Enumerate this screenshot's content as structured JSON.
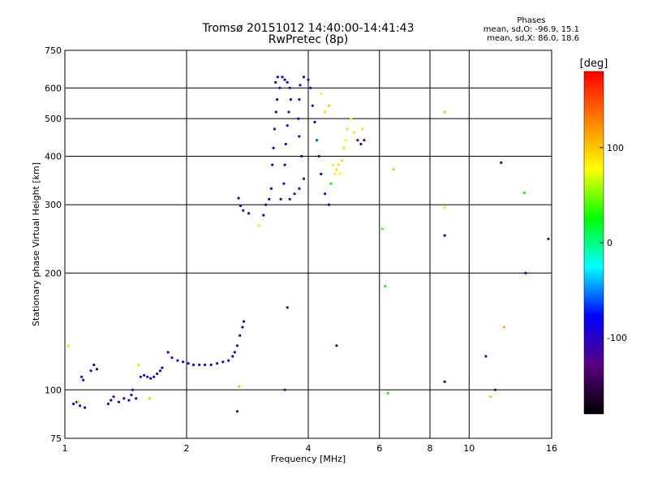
{
  "title_line1": "Tromsø 20151012 14:40:00-14:41:43",
  "title_line2": "RwPretec (8p)",
  "phases": {
    "title": "Phases",
    "line_o": "mean, sd,O: -96.9, 15.1",
    "line_x": "mean, sd,X:  86.0, 18.6"
  },
  "colorbar": {
    "unit": "[deg]",
    "ticks": [
      {
        "value": 100,
        "label": "100"
      },
      {
        "value": 0,
        "label": "0"
      },
      {
        "value": -100,
        "label": "-100"
      }
    ],
    "range": [
      -180,
      180
    ],
    "colors": [
      "#000000",
      "#5a007f",
      "#0000ff",
      "#00ffff",
      "#00ff00",
      "#ffff00",
      "#ff8000",
      "#ff0000"
    ]
  },
  "chart_data": {
    "type": "scatter",
    "xlabel": "Frequency [MHz]",
    "ylabel": "Stationary phase Virtual Height [km]",
    "xscale": "log",
    "yscale": "log",
    "xlim": [
      1,
      16
    ],
    "ylim": [
      75,
      750
    ],
    "xticks": [
      1,
      2,
      4,
      6,
      8,
      10,
      16
    ],
    "yticks": [
      75,
      100,
      200,
      300,
      400,
      500,
      600,
      750
    ],
    "grid": true,
    "series": [
      {
        "points": [
          [
            1.05,
            92,
            -100
          ],
          [
            1.07,
            93,
            -100
          ],
          [
            1.09,
            91,
            -100
          ],
          [
            1.12,
            90,
            -100
          ],
          [
            1.1,
            108,
            -100
          ],
          [
            1.11,
            106,
            -100
          ],
          [
            1.16,
            112,
            -100
          ],
          [
            1.18,
            116,
            -100
          ],
          [
            1.2,
            113,
            -100
          ],
          [
            1.28,
            92,
            -100
          ],
          [
            1.3,
            94,
            -100
          ],
          [
            1.32,
            96,
            -100
          ],
          [
            1.36,
            93,
            -100
          ],
          [
            1.4,
            95,
            -100
          ],
          [
            1.44,
            94,
            -100
          ],
          [
            1.46,
            97,
            -100
          ],
          [
            1.47,
            100,
            -100
          ],
          [
            1.5,
            95,
            -95
          ],
          [
            1.54,
            108,
            -100
          ],
          [
            1.57,
            109,
            -100
          ],
          [
            1.6,
            108,
            -100
          ],
          [
            1.63,
            107,
            -100
          ],
          [
            1.66,
            108,
            -100
          ],
          [
            1.69,
            110,
            -100
          ],
          [
            1.72,
            112,
            -100
          ],
          [
            1.74,
            114,
            -100
          ],
          [
            1.8,
            125,
            -100
          ],
          [
            1.84,
            121,
            -100
          ],
          [
            1.9,
            119,
            -100
          ],
          [
            1.96,
            118,
            -100
          ],
          [
            2.02,
            117,
            -100
          ],
          [
            2.08,
            116,
            -100
          ],
          [
            2.15,
            116,
            -100
          ],
          [
            2.22,
            116,
            -100
          ],
          [
            2.3,
            116,
            -100
          ],
          [
            2.38,
            117,
            -100
          ],
          [
            2.46,
            118,
            -100
          ],
          [
            2.54,
            119,
            -100
          ],
          [
            2.6,
            122,
            -100
          ],
          [
            2.63,
            125,
            -100
          ],
          [
            2.67,
            130,
            -100
          ],
          [
            2.71,
            138,
            -100
          ],
          [
            2.75,
            145,
            -100
          ],
          [
            2.77,
            150,
            -100
          ],
          [
            2.67,
            88,
            -110
          ],
          [
            2.69,
            312,
            -100
          ],
          [
            2.72,
            298,
            -100
          ],
          [
            2.76,
            290,
            -100
          ],
          [
            2.85,
            285,
            -100
          ],
          [
            3.1,
            282,
            -100
          ],
          [
            3.14,
            300,
            -100
          ],
          [
            3.2,
            310,
            -100
          ],
          [
            3.24,
            330,
            -100
          ],
          [
            3.26,
            380,
            -100
          ],
          [
            3.28,
            420,
            -100
          ],
          [
            3.3,
            470,
            -100
          ],
          [
            3.33,
            520,
            -100
          ],
          [
            3.35,
            560,
            -100
          ],
          [
            3.32,
            620,
            -100
          ],
          [
            3.36,
            640,
            -100
          ],
          [
            3.4,
            600,
            -100
          ],
          [
            3.45,
            640,
            -100
          ],
          [
            3.5,
            630,
            -100
          ],
          [
            3.55,
            620,
            -100
          ],
          [
            3.6,
            600,
            -100
          ],
          [
            3.62,
            560,
            -100
          ],
          [
            3.58,
            520,
            -100
          ],
          [
            3.55,
            480,
            -100
          ],
          [
            3.52,
            430,
            -100
          ],
          [
            3.5,
            380,
            -100
          ],
          [
            3.48,
            340,
            -100
          ],
          [
            3.42,
            310,
            -100
          ],
          [
            3.6,
            310,
            -100
          ],
          [
            3.7,
            320,
            -100
          ],
          [
            3.8,
            330,
            -100
          ],
          [
            3.9,
            350,
            -100
          ],
          [
            3.85,
            400,
            -100
          ],
          [
            3.8,
            450,
            -100
          ],
          [
            3.78,
            500,
            -100
          ],
          [
            3.8,
            560,
            -100
          ],
          [
            3.82,
            610,
            -100
          ],
          [
            3.9,
            640,
            -100
          ],
          [
            4.0,
            630,
            -100
          ],
          [
            4.05,
            600,
            -100
          ],
          [
            4.1,
            540,
            -100
          ],
          [
            4.15,
            490,
            -80
          ],
          [
            4.2,
            440,
            -60
          ],
          [
            4.25,
            400,
            -100
          ],
          [
            4.3,
            360,
            -100
          ],
          [
            4.4,
            320,
            -100
          ],
          [
            4.5,
            300,
            -100
          ],
          [
            4.55,
            340,
            20
          ],
          [
            4.6,
            380,
            70
          ],
          [
            4.65,
            360,
            80
          ],
          [
            4.7,
            370,
            90
          ],
          [
            4.75,
            380,
            90
          ],
          [
            4.8,
            360,
            80
          ],
          [
            4.85,
            390,
            90
          ],
          [
            4.9,
            420,
            90
          ],
          [
            4.95,
            440,
            80
          ],
          [
            5.0,
            470,
            90
          ],
          [
            5.1,
            500,
            80
          ],
          [
            5.2,
            460,
            90
          ],
          [
            5.3,
            440,
            -140
          ],
          [
            5.4,
            430,
            -140
          ],
          [
            5.5,
            440,
            -140
          ],
          [
            5.45,
            470,
            90
          ],
          [
            4.5,
            540,
            100
          ],
          [
            4.4,
            520,
            90
          ],
          [
            4.3,
            580,
            80
          ],
          [
            3.55,
            163,
            -110
          ],
          [
            3.5,
            100,
            -120
          ],
          [
            4.7,
            130,
            -100
          ],
          [
            1.02,
            130,
            90
          ],
          [
            1.08,
            93,
            90
          ],
          [
            1.52,
            116,
            90
          ],
          [
            1.62,
            95,
            100
          ],
          [
            2.7,
            102,
            100
          ],
          [
            3.02,
            265,
            70
          ],
          [
            6.1,
            260,
            40
          ],
          [
            6.2,
            185,
            30
          ],
          [
            6.3,
            98,
            30
          ],
          [
            6.5,
            370,
            100
          ],
          [
            8.7,
            520,
            100
          ],
          [
            8.7,
            295,
            90
          ],
          [
            8.7,
            250,
            -110
          ],
          [
            8.7,
            105,
            -110
          ],
          [
            11.0,
            122,
            -110
          ],
          [
            12.0,
            385,
            -110
          ],
          [
            12.2,
            145,
            110
          ],
          [
            11.3,
            96,
            100
          ],
          [
            11.6,
            100,
            -110
          ],
          [
            13.7,
            322,
            30
          ],
          [
            13.8,
            200,
            -110
          ],
          [
            15.7,
            245,
            -120
          ]
        ]
      }
    ]
  }
}
